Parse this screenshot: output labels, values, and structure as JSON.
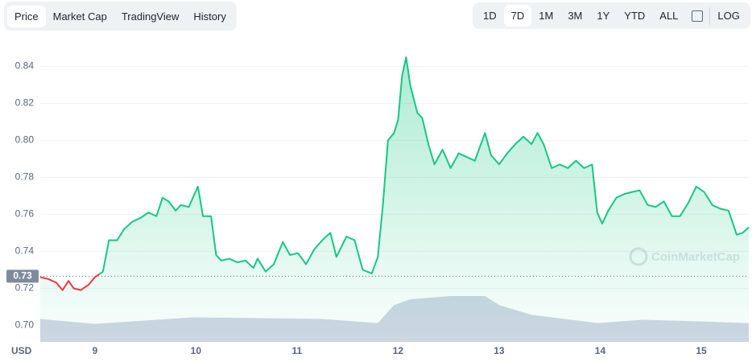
{
  "tabs": [
    "Price",
    "Market Cap",
    "TradingView",
    "History"
  ],
  "selected_tab": 0,
  "ranges": [
    "1D",
    "7D",
    "1M",
    "3M",
    "1Y",
    "YTD",
    "ALL"
  ],
  "selected_range": 1,
  "log_button": "LOG",
  "chart_data": {
    "type": "line",
    "currency": "USD",
    "watermark": "CoinMarketCap",
    "x": [
      8.46,
      8.54,
      8.62,
      8.68,
      8.74,
      8.79,
      8.86,
      8.94,
      9.0,
      9.08,
      9.14,
      9.22,
      9.29,
      9.37,
      9.45,
      9.53,
      9.61,
      9.67,
      9.73,
      9.8,
      9.85,
      9.93,
      9.97,
      10.02,
      10.07,
      10.15,
      10.2,
      10.25,
      10.33,
      10.41,
      10.49,
      10.57,
      10.61,
      10.69,
      10.77,
      10.86,
      10.93,
      11.01,
      11.09,
      11.17,
      11.25,
      11.33,
      11.39,
      11.49,
      11.57,
      11.65,
      11.74,
      11.8,
      11.85,
      11.9,
      11.96,
      12.0,
      12.04,
      12.08,
      12.12,
      12.19,
      12.24,
      12.3,
      12.36,
      12.44,
      12.52,
      12.6,
      12.68,
      12.76,
      12.86,
      12.92,
      13.0,
      13.08,
      13.16,
      13.24,
      13.32,
      13.38,
      13.44,
      13.52,
      13.6,
      13.68,
      13.76,
      13.84,
      13.92,
      13.97,
      14.02,
      14.08,
      14.16,
      14.24,
      14.31,
      14.39,
      14.47,
      14.55,
      14.63,
      14.71,
      14.79,
      14.87,
      14.95,
      15.03,
      15.11,
      15.19,
      15.27,
      15.35,
      15.41,
      15.47
    ],
    "series": [
      {
        "name": "Price",
        "values": [
          0.726,
          0.725,
          0.723,
          0.719,
          0.724,
          0.72,
          0.719,
          0.722,
          0.726,
          0.729,
          0.746,
          0.746,
          0.752,
          0.756,
          0.758,
          0.761,
          0.759,
          0.769,
          0.767,
          0.762,
          0.765,
          0.764,
          0.769,
          0.775,
          0.759,
          0.759,
          0.738,
          0.735,
          0.736,
          0.734,
          0.735,
          0.731,
          0.736,
          0.729,
          0.733,
          0.745,
          0.738,
          0.739,
          0.733,
          0.741,
          0.746,
          0.75,
          0.737,
          0.748,
          0.746,
          0.73,
          0.728,
          0.737,
          0.765,
          0.8,
          0.804,
          0.811,
          0.835,
          0.845,
          0.83,
          0.815,
          0.812,
          0.798,
          0.787,
          0.795,
          0.785,
          0.793,
          0.791,
          0.789,
          0.804,
          0.792,
          0.787,
          0.793,
          0.798,
          0.802,
          0.798,
          0.804,
          0.798,
          0.785,
          0.787,
          0.785,
          0.789,
          0.785,
          0.787,
          0.761,
          0.755,
          0.762,
          0.769,
          0.771,
          0.772,
          0.773,
          0.765,
          0.764,
          0.767,
          0.759,
          0.759,
          0.766,
          0.775,
          0.772,
          0.765,
          0.763,
          0.762,
          0.749,
          0.75,
          0.753
        ]
      }
    ],
    "colors": {
      "up": "#16c784",
      "down": "#ea3943"
    },
    "reference": {
      "value": 0.7265,
      "label": "0.73"
    },
    "volume": {
      "x": [
        8.46,
        9.0,
        9.97,
        11.25,
        11.8,
        11.96,
        12.12,
        12.52,
        12.86,
        13.0,
        13.32,
        13.98,
        14.42,
        14.98,
        15.47
      ],
      "values": [
        28,
        22,
        30,
        28,
        23,
        45,
        52,
        56,
        56,
        45,
        33,
        23,
        27,
        25,
        23
      ],
      "color": "#cfd6e4"
    },
    "xlim": [
      8.46,
      15.47
    ],
    "xticks": [
      9,
      10,
      11,
      12,
      13,
      14,
      15
    ],
    "ylim": [
      0.691,
      0.852
    ],
    "yticks": [
      {
        "value": 0.7,
        "label": "0.70"
      },
      0.72,
      0.74,
      0.76,
      0.78,
      {
        "value": 0.8,
        "label": "0.80"
      },
      0.82,
      0.84
    ],
    "grid": true
  }
}
